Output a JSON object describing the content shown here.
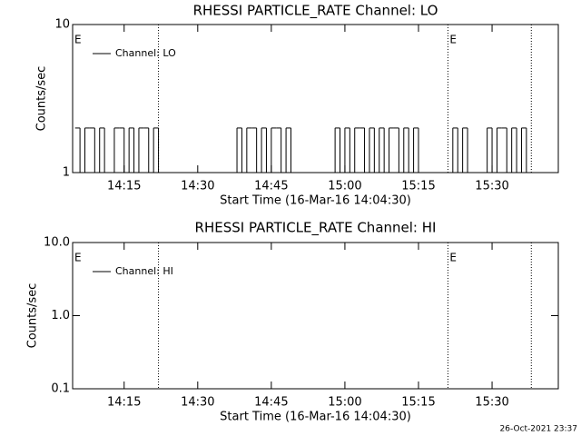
{
  "chart_data": [
    {
      "type": "line",
      "title": "RHESSI PARTICLE_RATE Channel: LO",
      "xlabel": "Start Time (16-Mar-16 14:04:30)",
      "ylabel": "Counts/sec",
      "log_y": true,
      "ylim": [
        1,
        10
      ],
      "yticks": [
        1,
        10
      ],
      "xlim": [
        "14:04:30",
        "15:43:30"
      ],
      "xticks": [
        "14:15",
        "14:30",
        "14:45",
        "15:00",
        "15:15",
        "15:30"
      ],
      "annotations": [
        "E",
        "E"
      ],
      "event_lines": [
        "14:22",
        "15:21",
        "15:38"
      ],
      "x": [
        "14:05",
        "14:06",
        "14:07",
        "14:08",
        "14:09",
        "14:10",
        "14:11",
        "14:12",
        "14:13",
        "14:14",
        "14:15",
        "14:16",
        "14:17",
        "14:18",
        "14:19",
        "14:20",
        "14:21",
        "14:22",
        "14:23",
        "14:24",
        "14:25",
        "14:26",
        "14:27",
        "14:28",
        "14:29",
        "14:30",
        "14:31",
        "14:32",
        "14:33",
        "14:34",
        "14:35",
        "14:36",
        "14:37",
        "14:38",
        "14:39",
        "14:40",
        "14:41",
        "14:42",
        "14:43",
        "14:44",
        "14:45",
        "14:46",
        "14:47",
        "14:48",
        "14:49",
        "14:50",
        "14:51",
        "14:52",
        "14:53",
        "14:54",
        "14:55",
        "14:56",
        "14:57",
        "14:58",
        "14:59",
        "15:00",
        "15:01",
        "15:02",
        "15:03",
        "15:04",
        "15:05",
        "15:06",
        "15:07",
        "15:08",
        "15:09",
        "15:10",
        "15:11",
        "15:12",
        "15:13",
        "15:14",
        "15:15",
        "15:16",
        "15:17",
        "15:18",
        "15:19",
        "15:20",
        "15:21",
        "15:22",
        "15:23",
        "15:24",
        "15:25",
        "15:26",
        "15:27",
        "15:28",
        "15:29",
        "15:30",
        "15:31",
        "15:32",
        "15:33",
        "15:34",
        "15:35",
        "15:36",
        "15:37",
        "15:38"
      ],
      "series": [
        {
          "name": "Channel: LO",
          "color": "#000000",
          "values": [
            2,
            1,
            2,
            2,
            1,
            2,
            1,
            1,
            2,
            2,
            1,
            2,
            1,
            2,
            2,
            1,
            2,
            1,
            1,
            1,
            1,
            1,
            1,
            1,
            1,
            1,
            1,
            1,
            1,
            1,
            1,
            1,
            1,
            2,
            1,
            2,
            2,
            1,
            2,
            1,
            2,
            2,
            1,
            2,
            1,
            1,
            1,
            1,
            1,
            1,
            1,
            1,
            1,
            2,
            1,
            2,
            1,
            2,
            2,
            1,
            2,
            1,
            2,
            1,
            2,
            2,
            1,
            2,
            1,
            2,
            1,
            1,
            1,
            1,
            1,
            1,
            1,
            2,
            1,
            2,
            1,
            1,
            1,
            1,
            2,
            1,
            2,
            2,
            1,
            2,
            1,
            2,
            1,
            1
          ]
        }
      ]
    },
    {
      "type": "line",
      "title": "RHESSI PARTICLE_RATE Channel: HI",
      "xlabel": "Start Time (16-Mar-16 14:04:30)",
      "ylabel": "Counts/sec",
      "log_y": true,
      "ylim": [
        0.1,
        10
      ],
      "yticks": [
        0.1,
        {
          "value": 1,
          "label": "1.0"
        },
        {
          "value": 10,
          "label": "10.0"
        }
      ],
      "xlim": [
        "14:04:30",
        "15:43:30"
      ],
      "xticks": [
        "14:15",
        "14:30",
        "14:45",
        "15:00",
        "15:15",
        "15:30"
      ],
      "annotations": [
        "E",
        "E"
      ],
      "event_lines": [
        "14:22",
        "15:21",
        "15:38"
      ],
      "x": [],
      "series": [
        {
          "name": "Channel: HI",
          "color": "#000000",
          "values": []
        }
      ]
    }
  ],
  "footer": "26-Oct-2021 23:37"
}
